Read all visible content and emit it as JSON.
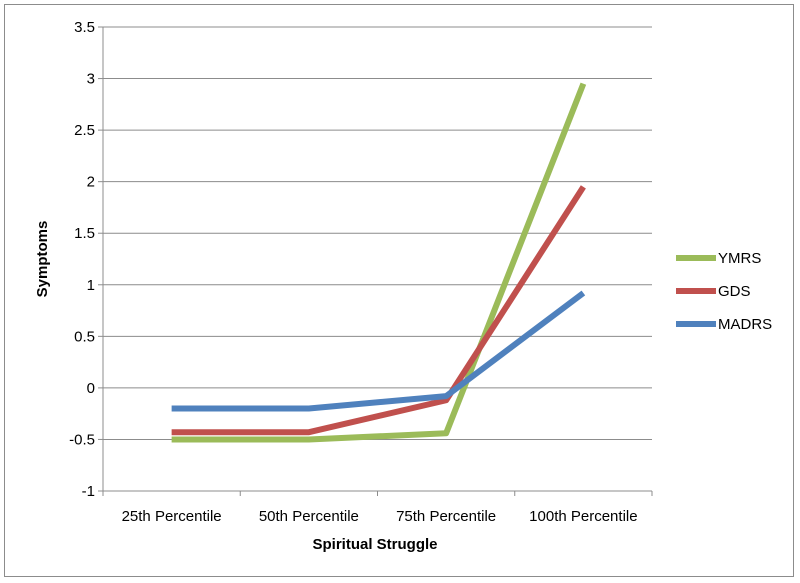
{
  "chart_data": {
    "type": "line",
    "categories": [
      "25th Percentile",
      "50th Percentile",
      "75th Percentile",
      "100th Percentile"
    ],
    "series": [
      {
        "name": "YMRS",
        "color": "#9bbb59",
        "values": [
          -0.5,
          -0.5,
          -0.44,
          2.95
        ]
      },
      {
        "name": "GDS",
        "color": "#c0504d",
        "values": [
          -0.43,
          -0.43,
          -0.12,
          1.95
        ]
      },
      {
        "name": "MADRS",
        "color": "#4f81bd",
        "values": [
          -0.2,
          -0.2,
          -0.08,
          0.92
        ]
      }
    ],
    "yticks": [
      "3.5",
      "3",
      "2.5",
      "2",
      "1.5",
      "1",
      "0.5",
      "0",
      "-0.5",
      "-1"
    ],
    "ylim": [
      -1,
      3.5
    ],
    "xlabel": "Spiritual Struggle",
    "ylabel": "Symptoms",
    "grid": true,
    "legend": "right"
  }
}
